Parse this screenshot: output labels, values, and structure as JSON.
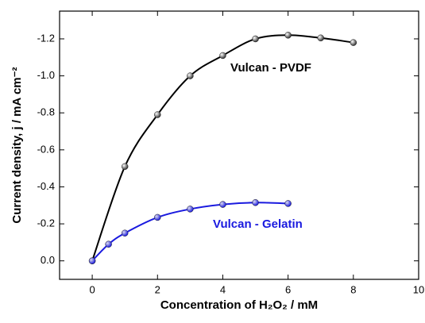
{
  "chart_data": {
    "type": "line",
    "x_label": "Concentration of H₂O₂ / mM",
    "y_label": "Current density, j / mA cm⁻²",
    "xlim": [
      -1,
      10
    ],
    "xticks": [
      0,
      2,
      4,
      6,
      8,
      10
    ],
    "ylim": [
      0.1,
      -1.35
    ],
    "yticks": [
      {
        "value": 0,
        "label": "0.0"
      },
      -0.2,
      -0.4,
      -0.6,
      -0.8,
      {
        "value": -1.0,
        "label": "-1.0"
      },
      -1.2
    ],
    "series": [
      {
        "name": "Vulcan - PVDF",
        "color": "#000000",
        "x": [
          0,
          1,
          2,
          3,
          4,
          5,
          6,
          7,
          8
        ],
        "values": [
          0,
          -0.51,
          -0.79,
          -1.0,
          -1.11,
          -1.2,
          -1.22,
          -1.205,
          -1.18
        ]
      },
      {
        "name": "Vulcan - Gelatin",
        "color": "#1a1adf",
        "x": [
          0,
          0.5,
          1,
          2,
          3,
          4,
          5,
          6
        ],
        "values": [
          0,
          -0.09,
          -0.15,
          -0.235,
          -0.28,
          -0.305,
          -0.315,
          -0.31
        ]
      }
    ]
  }
}
